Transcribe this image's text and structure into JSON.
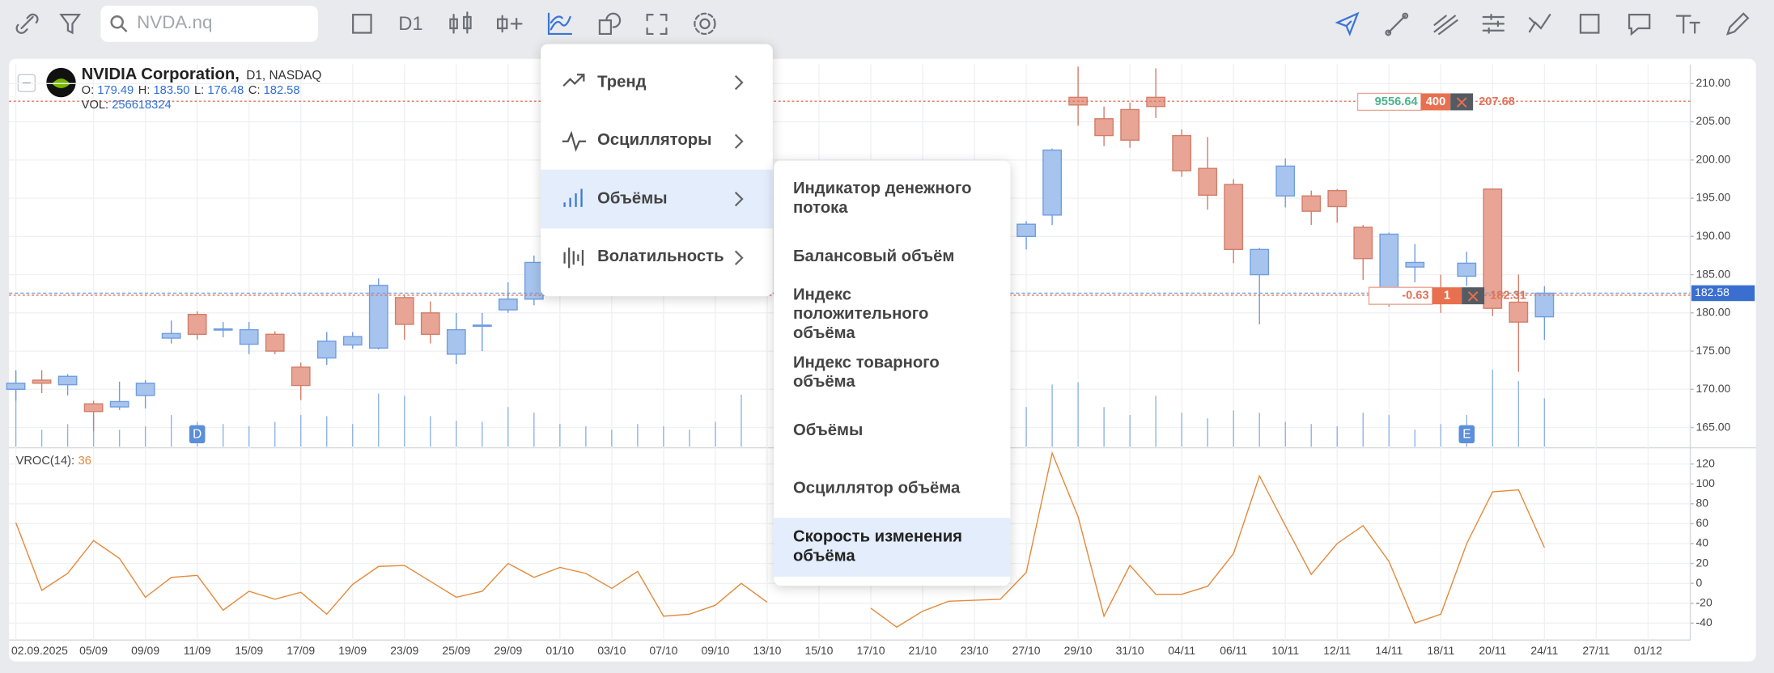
{
  "toolbar": {
    "search_placeholder": "NVDA.nq",
    "timeframe": "D1"
  },
  "header": {
    "title": "NVIDIA Corporation,",
    "subtitle": "D1, NASDAQ",
    "ohlc": [
      {
        "label": "O:",
        "value": "179.49"
      },
      {
        "label": "H:",
        "value": "183.50"
      },
      {
        "label": "L:",
        "value": "176.48"
      },
      {
        "label": "C:",
        "value": "182.58"
      }
    ],
    "volume_label": "VOL:",
    "indicator_label": "VROC(14):"
  },
  "menu": {
    "items": [
      "Тренд",
      "Осцилляторы",
      "Объёмы",
      "Волатильность"
    ],
    "active": 2
  },
  "submenu": {
    "items": [
      "Индикатор денежного потока",
      "Балансовый объём",
      "Индекс положительного объёма",
      "Индекс товарного объёма",
      "Объёмы",
      "Осциллятор объёма",
      "Скорость изменения объёма"
    ],
    "active": 6
  },
  "chart_data": {
    "type": "candlestick",
    "categories": [
      "02.09.2025",
      null,
      null,
      "05/09",
      null,
      "09/09",
      null,
      "11/09",
      null,
      "15/09",
      null,
      "17/09",
      null,
      "19/09",
      null,
      "23/09",
      null,
      "25/09",
      null,
      "29/09",
      null,
      "01/10",
      null,
      "03/10",
      null,
      "07/10",
      null,
      "09/10",
      null,
      "13/10",
      null,
      "15/10",
      null,
      "17/10",
      null,
      "21/10",
      null,
      "23/10",
      null,
      "27/10",
      null,
      "29/10",
      null,
      "31/10",
      null,
      "04/11",
      null,
      "06/11",
      null,
      "10/11",
      null,
      "12/11",
      null,
      "14/11",
      null,
      "18/11",
      null,
      "20/11",
      null,
      "24/11",
      null,
      "27/11",
      null,
      "01/12"
    ],
    "open": [
      170.0,
      171.2,
      170.6,
      168.1,
      167.7,
      169.2,
      176.7,
      179.8,
      177.8,
      175.9,
      177.2,
      172.9,
      174.1,
      175.8,
      175.4,
      182.0,
      180.0,
      174.6,
      178.3,
      180.4,
      181.8,
      null,
      null,
      null,
      null,
      null,
      null,
      null,
      null,
      null,
      null,
      null,
      null,
      null,
      null,
      null,
      null,
      null,
      null,
      190.0,
      192.8,
      208.2,
      205.4,
      206.6,
      208.2,
      203.2,
      198.9,
      196.8,
      185.0,
      195.3,
      195.3,
      196.0,
      191.2,
      182.6,
      186.0,
      182.5,
      184.8,
      196.2,
      181.4,
      179.49,
      null,
      null,
      null,
      null
    ],
    "high": [
      172.5,
      172.5,
      172.0,
      168.5,
      171.0,
      171.2,
      179.0,
      180.2,
      178.8,
      178.8,
      177.6,
      173.5,
      177.5,
      177.5,
      184.5,
      182.4,
      181.5,
      180.0,
      180.0,
      184.0,
      187.5,
      null,
      null,
      null,
      null,
      null,
      null,
      null,
      null,
      null,
      null,
      null,
      null,
      null,
      null,
      null,
      null,
      null,
      null,
      192.0,
      201.5,
      212.2,
      207.0,
      207.5,
      212.0,
      204.0,
      203.0,
      197.5,
      188.5,
      200.2,
      196.0,
      196.2,
      191.5,
      190.5,
      189.0,
      185.0,
      188.0,
      196.3,
      185.0,
      183.5,
      null,
      null,
      null,
      null
    ],
    "low": [
      168.5,
      169.5,
      169.2,
      164.5,
      167.3,
      167.5,
      176.0,
      176.5,
      176.8,
      174.6,
      174.6,
      168.6,
      173.2,
      175.3,
      175.2,
      176.5,
      176.0,
      173.3,
      175.0,
      180.0,
      181.0,
      null,
      null,
      null,
      null,
      null,
      null,
      null,
      null,
      null,
      null,
      null,
      null,
      null,
      null,
      null,
      null,
      null,
      null,
      188.3,
      191.5,
      204.5,
      201.8,
      201.6,
      205.5,
      197.8,
      193.5,
      186.5,
      178.5,
      193.8,
      191.5,
      191.8,
      184.3,
      180.8,
      184.0,
      180.0,
      183.5,
      179.6,
      172.3,
      176.48,
      null,
      null,
      null,
      null
    ],
    "close": [
      170.8,
      170.8,
      171.7,
      167.1,
      168.4,
      170.8,
      177.3,
      177.2,
      177.9,
      177.8,
      175.0,
      170.5,
      176.3,
      176.9,
      183.6,
      178.5,
      177.2,
      177.8,
      178.4,
      181.8,
      186.6,
      null,
      null,
      null,
      null,
      null,
      null,
      null,
      null,
      null,
      null,
      null,
      null,
      null,
      null,
      null,
      null,
      null,
      null,
      191.6,
      201.3,
      207.2,
      203.2,
      202.6,
      207.0,
      198.6,
      195.4,
      188.3,
      188.3,
      199.2,
      193.3,
      193.9,
      187.1,
      190.3,
      186.6,
      181.5,
      186.5,
      180.6,
      178.8,
      182.58,
      null,
      null,
      null,
      null
    ],
    "volume": [
      402000000,
      90000000,
      120000000,
      168000000,
      90000000,
      108000000,
      168000000,
      132000000,
      120000000,
      108000000,
      132000000,
      168000000,
      162000000,
      120000000,
      282000000,
      270000000,
      162000000,
      138000000,
      132000000,
      210000000,
      180000000,
      120000000,
      108000000,
      90000000,
      120000000,
      108000000,
      90000000,
      132000000,
      276000000,
      null,
      null,
      null,
      null,
      null,
      null,
      null,
      null,
      null,
      null,
      210000000,
      330000000,
      342000000,
      210000000,
      168000000,
      270000000,
      180000000,
      150000000,
      192000000,
      180000000,
      132000000,
      120000000,
      108000000,
      180000000,
      168000000,
      90000000,
      120000000,
      168000000,
      408000000,
      348000000,
      256618324,
      null,
      null,
      null,
      null
    ],
    "vroc": [
      61,
      -7,
      10,
      43,
      25,
      -14,
      6,
      8,
      -27,
      -8,
      -16,
      -9,
      -31,
      -1,
      17,
      18,
      2,
      -14,
      -8,
      20,
      6,
      16,
      10,
      -5,
      12,
      -33,
      -31,
      -22,
      0,
      -19,
      null,
      null,
      null,
      -25,
      -44,
      -28,
      -18,
      -17,
      -16,
      11,
      131,
      67,
      -33,
      18,
      -11,
      -11,
      -3,
      30,
      108,
      58,
      9,
      40,
      58,
      22,
      -40,
      -31,
      40,
      92,
      94,
      36,
      null,
      null,
      null,
      null
    ],
    "events": [
      null,
      null,
      null,
      null,
      null,
      null,
      null,
      "D",
      null,
      null,
      null,
      null,
      null,
      null,
      null,
      null,
      null,
      null,
      null,
      null,
      null,
      null,
      null,
      null,
      null,
      null,
      null,
      null,
      null,
      null,
      null,
      null,
      null,
      null,
      null,
      null,
      null,
      null,
      null,
      null,
      null,
      null,
      null,
      null,
      null,
      null,
      null,
      null,
      null,
      null,
      null,
      null,
      null,
      null,
      null,
      null,
      "E",
      null,
      null,
      null,
      null,
      null,
      null,
      null
    ],
    "ylim": [
      162.5,
      212.5
    ],
    "yticks": [
      {
        "value": 210,
        "label": "210.00"
      },
      {
        "value": 205,
        "label": "205.00"
      },
      {
        "value": 200,
        "label": "200.00"
      },
      {
        "value": 195,
        "label": "195.00"
      },
      {
        "value": 190,
        "label": "190.00"
      },
      {
        "value": 185,
        "label": "185.00"
      },
      {
        "value": 180,
        "label": "180.00"
      },
      {
        "value": 175,
        "label": "175.00"
      },
      {
        "value": 170,
        "label": "170.00"
      },
      {
        "value": 165,
        "label": "165.00"
      }
    ],
    "y2lim": [
      -57,
      134
    ],
    "y2ticks": [
      120,
      100,
      80,
      60,
      40,
      20,
      0,
      -20,
      -40
    ],
    "orders": [
      {
        "profit": 9556.64,
        "qty": 400,
        "price": 207.68
      },
      {
        "profit": -0.63,
        "qty": 1,
        "price": 182.31
      }
    ],
    "up_color": "#a7c4ee",
    "down_color": "#e8a596",
    "vroc_color": "#e48a3a",
    "grid": true
  }
}
